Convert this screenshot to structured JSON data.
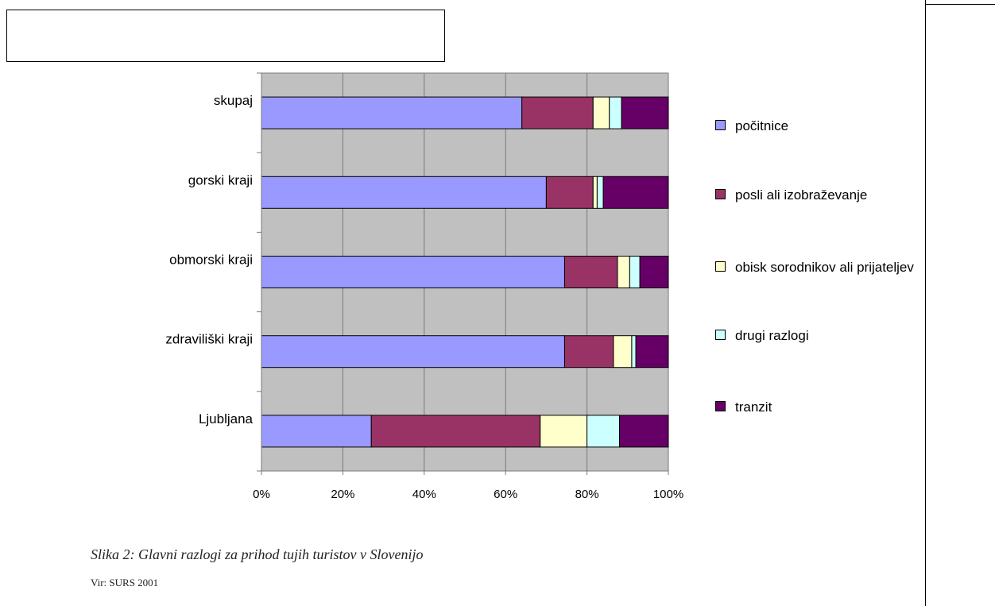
{
  "chart_data": {
    "type": "bar",
    "orientation": "horizontal",
    "stacked": "percent",
    "categories": [
      "skupaj",
      "gorski kraji",
      "obmorski kraji",
      "zdraviliški kraji",
      "Ljubljana"
    ],
    "series": [
      {
        "name": "počitnice",
        "color": "#9999ff",
        "values": [
          64,
          70,
          74.5,
          74.5,
          27
        ]
      },
      {
        "name": "posli ali izobraževanje",
        "color": "#993366",
        "values": [
          17.5,
          11.5,
          13,
          12,
          41.5
        ]
      },
      {
        "name": "obisk sorodnikov ali prijateljev",
        "color": "#ffffcc",
        "values": [
          4,
          1,
          3,
          4.5,
          11.5
        ]
      },
      {
        "name": "drugi razlogi",
        "color": "#ccffff",
        "values": [
          3,
          1.5,
          2.5,
          1,
          8
        ]
      },
      {
        "name": "tranzit",
        "color": "#660066",
        "values": [
          11.5,
          16,
          7,
          8,
          12
        ]
      }
    ],
    "xlim": [
      0,
      100
    ],
    "xticks": [
      "0%",
      "20%",
      "40%",
      "60%",
      "80%",
      "100%"
    ],
    "plot_background": "#c0c0c0",
    "grid": true,
    "legend_position": "right",
    "title": "",
    "xlabel": "",
    "ylabel": ""
  },
  "caption": "Slika 2: Glavni razlogi za prihod tujih turistov v Slovenijo",
  "source": "Vir: SURS 2001"
}
